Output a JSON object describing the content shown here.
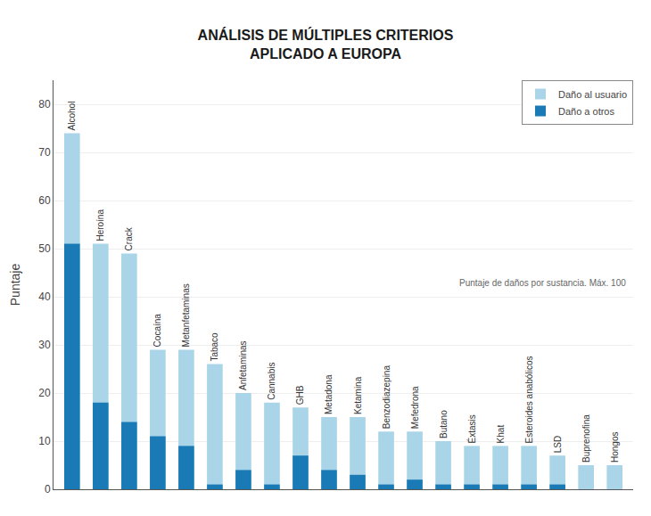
{
  "chart_data": {
    "type": "bar",
    "title": "ANÁLISIS DE MÚLTIPLES CRITERIOS\nAPLICADO A EUROPA",
    "y_label": "Puntaje",
    "annotation": "Puntaje de daños por sustancia. Máx. 100",
    "categories": [
      "Alcohol",
      "Heroína",
      "Crack",
      "Cocaína",
      "Metanfetaminas",
      "Tabaco",
      "Anfetaminas",
      "Cannabis",
      "GHB",
      "Metadona",
      "Ketamina",
      "Benzodiazepina",
      "Mefedrona",
      "Butano",
      "Éxtasis",
      "Khat",
      "Esteroides anabólicos",
      "LSD",
      "Buprenofina",
      "Hongos"
    ],
    "series": [
      {
        "name": "Daño al usuario",
        "color": "#aad4e8",
        "values": [
          74,
          51,
          49,
          29,
          29,
          26,
          20,
          18,
          17,
          15,
          15,
          12,
          12,
          10,
          9,
          9,
          9,
          7,
          5,
          5
        ]
      },
      {
        "name": "Daño a otros",
        "color": "#1a7ab5",
        "values": [
          51,
          18,
          14,
          11,
          9,
          1,
          4,
          1,
          7,
          4,
          3,
          1,
          2,
          1,
          1,
          1,
          1,
          1,
          0,
          0
        ]
      }
    ],
    "stacked": false,
    "ylim": [
      0,
      85
    ],
    "yticks": [
      0,
      10,
      20,
      30,
      40,
      50,
      60,
      70,
      80
    ],
    "grid": true,
    "legend": "upper right",
    "tick_labels": "y"
  }
}
